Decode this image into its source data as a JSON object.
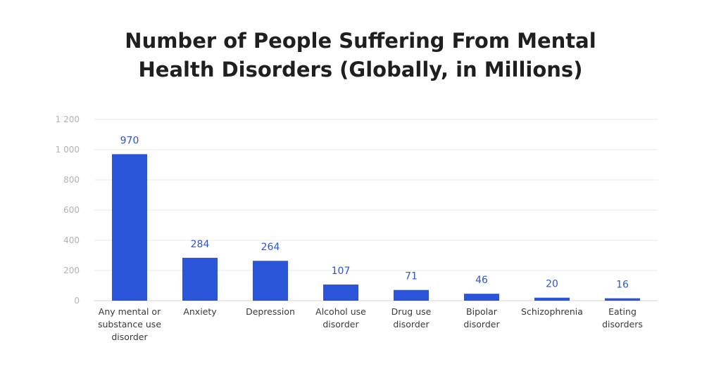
{
  "chart_data": {
    "type": "bar",
    "title_lines": [
      "Number of People Suffering From Mental",
      "Health Disorders (Globally, in Millions)"
    ],
    "categories": [
      [
        "Any mental or",
        "substance use",
        "disorder"
      ],
      [
        "Anxiety"
      ],
      [
        "Depression"
      ],
      [
        "Alcohol use",
        "disorder"
      ],
      [
        "Drug use",
        "disorder"
      ],
      [
        "Bipolar",
        "disorder"
      ],
      [
        "Schizophrenia"
      ],
      [
        "Eating",
        "disorders"
      ]
    ],
    "values": [
      970,
      284,
      264,
      107,
      71,
      46,
      20,
      16
    ],
    "data_labels": [
      "970",
      "284",
      "264",
      "107",
      "71",
      "46",
      "20",
      "16"
    ],
    "ylim": [
      0,
      1200
    ],
    "yticks": [
      0,
      200,
      400,
      600,
      800,
      1000,
      1200
    ],
    "ytick_labels": [
      "0",
      "200",
      "400",
      "600",
      "800",
      "1 000",
      "1 200"
    ],
    "xlabel": "",
    "ylabel": "",
    "grid": true,
    "legend": "none",
    "colors": {
      "bar": "#2b55d8",
      "data_label": "#2b55d8",
      "tick_label": "#b3b3b3",
      "category_label": "#3a3a3a",
      "title": "#1f1f1f"
    }
  }
}
